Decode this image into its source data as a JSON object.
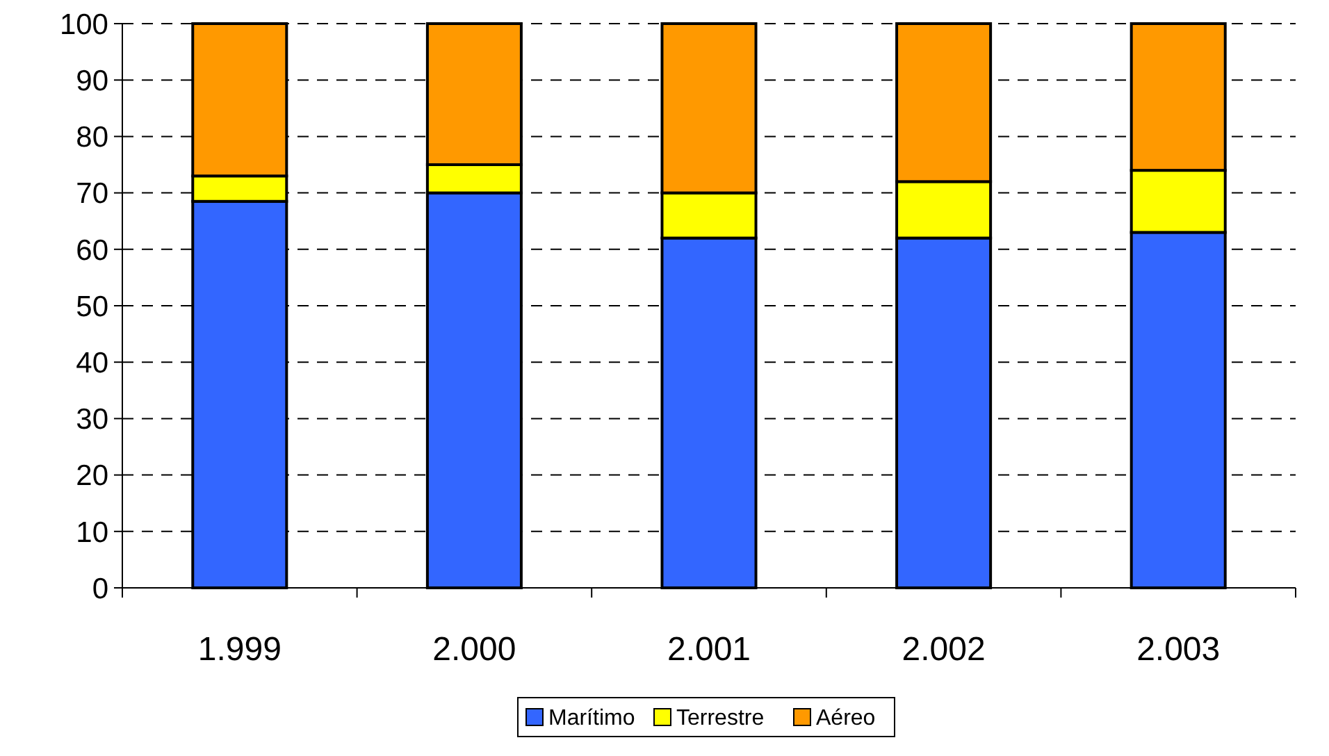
{
  "chart_data": {
    "type": "bar",
    "stacked": true,
    "categories": [
      "1.999",
      "2.000",
      "2.001",
      "2.002",
      "2.003"
    ],
    "series": [
      {
        "name": "Marítimo",
        "color": "#3366ff",
        "values": [
          68.5,
          70,
          62,
          62,
          63
        ]
      },
      {
        "name": "Terrestre",
        "color": "#ffff00",
        "values": [
          4.5,
          5,
          8,
          10,
          11
        ]
      },
      {
        "name": "Aéreo",
        "color": "#ff9900",
        "values": [
          27,
          25,
          30,
          28,
          26
        ]
      }
    ],
    "ylim": [
      0,
      100
    ],
    "yticks": [
      0,
      10,
      20,
      30,
      40,
      50,
      60,
      70,
      80,
      90,
      100
    ],
    "grid": "y",
    "legend": "bottom"
  }
}
